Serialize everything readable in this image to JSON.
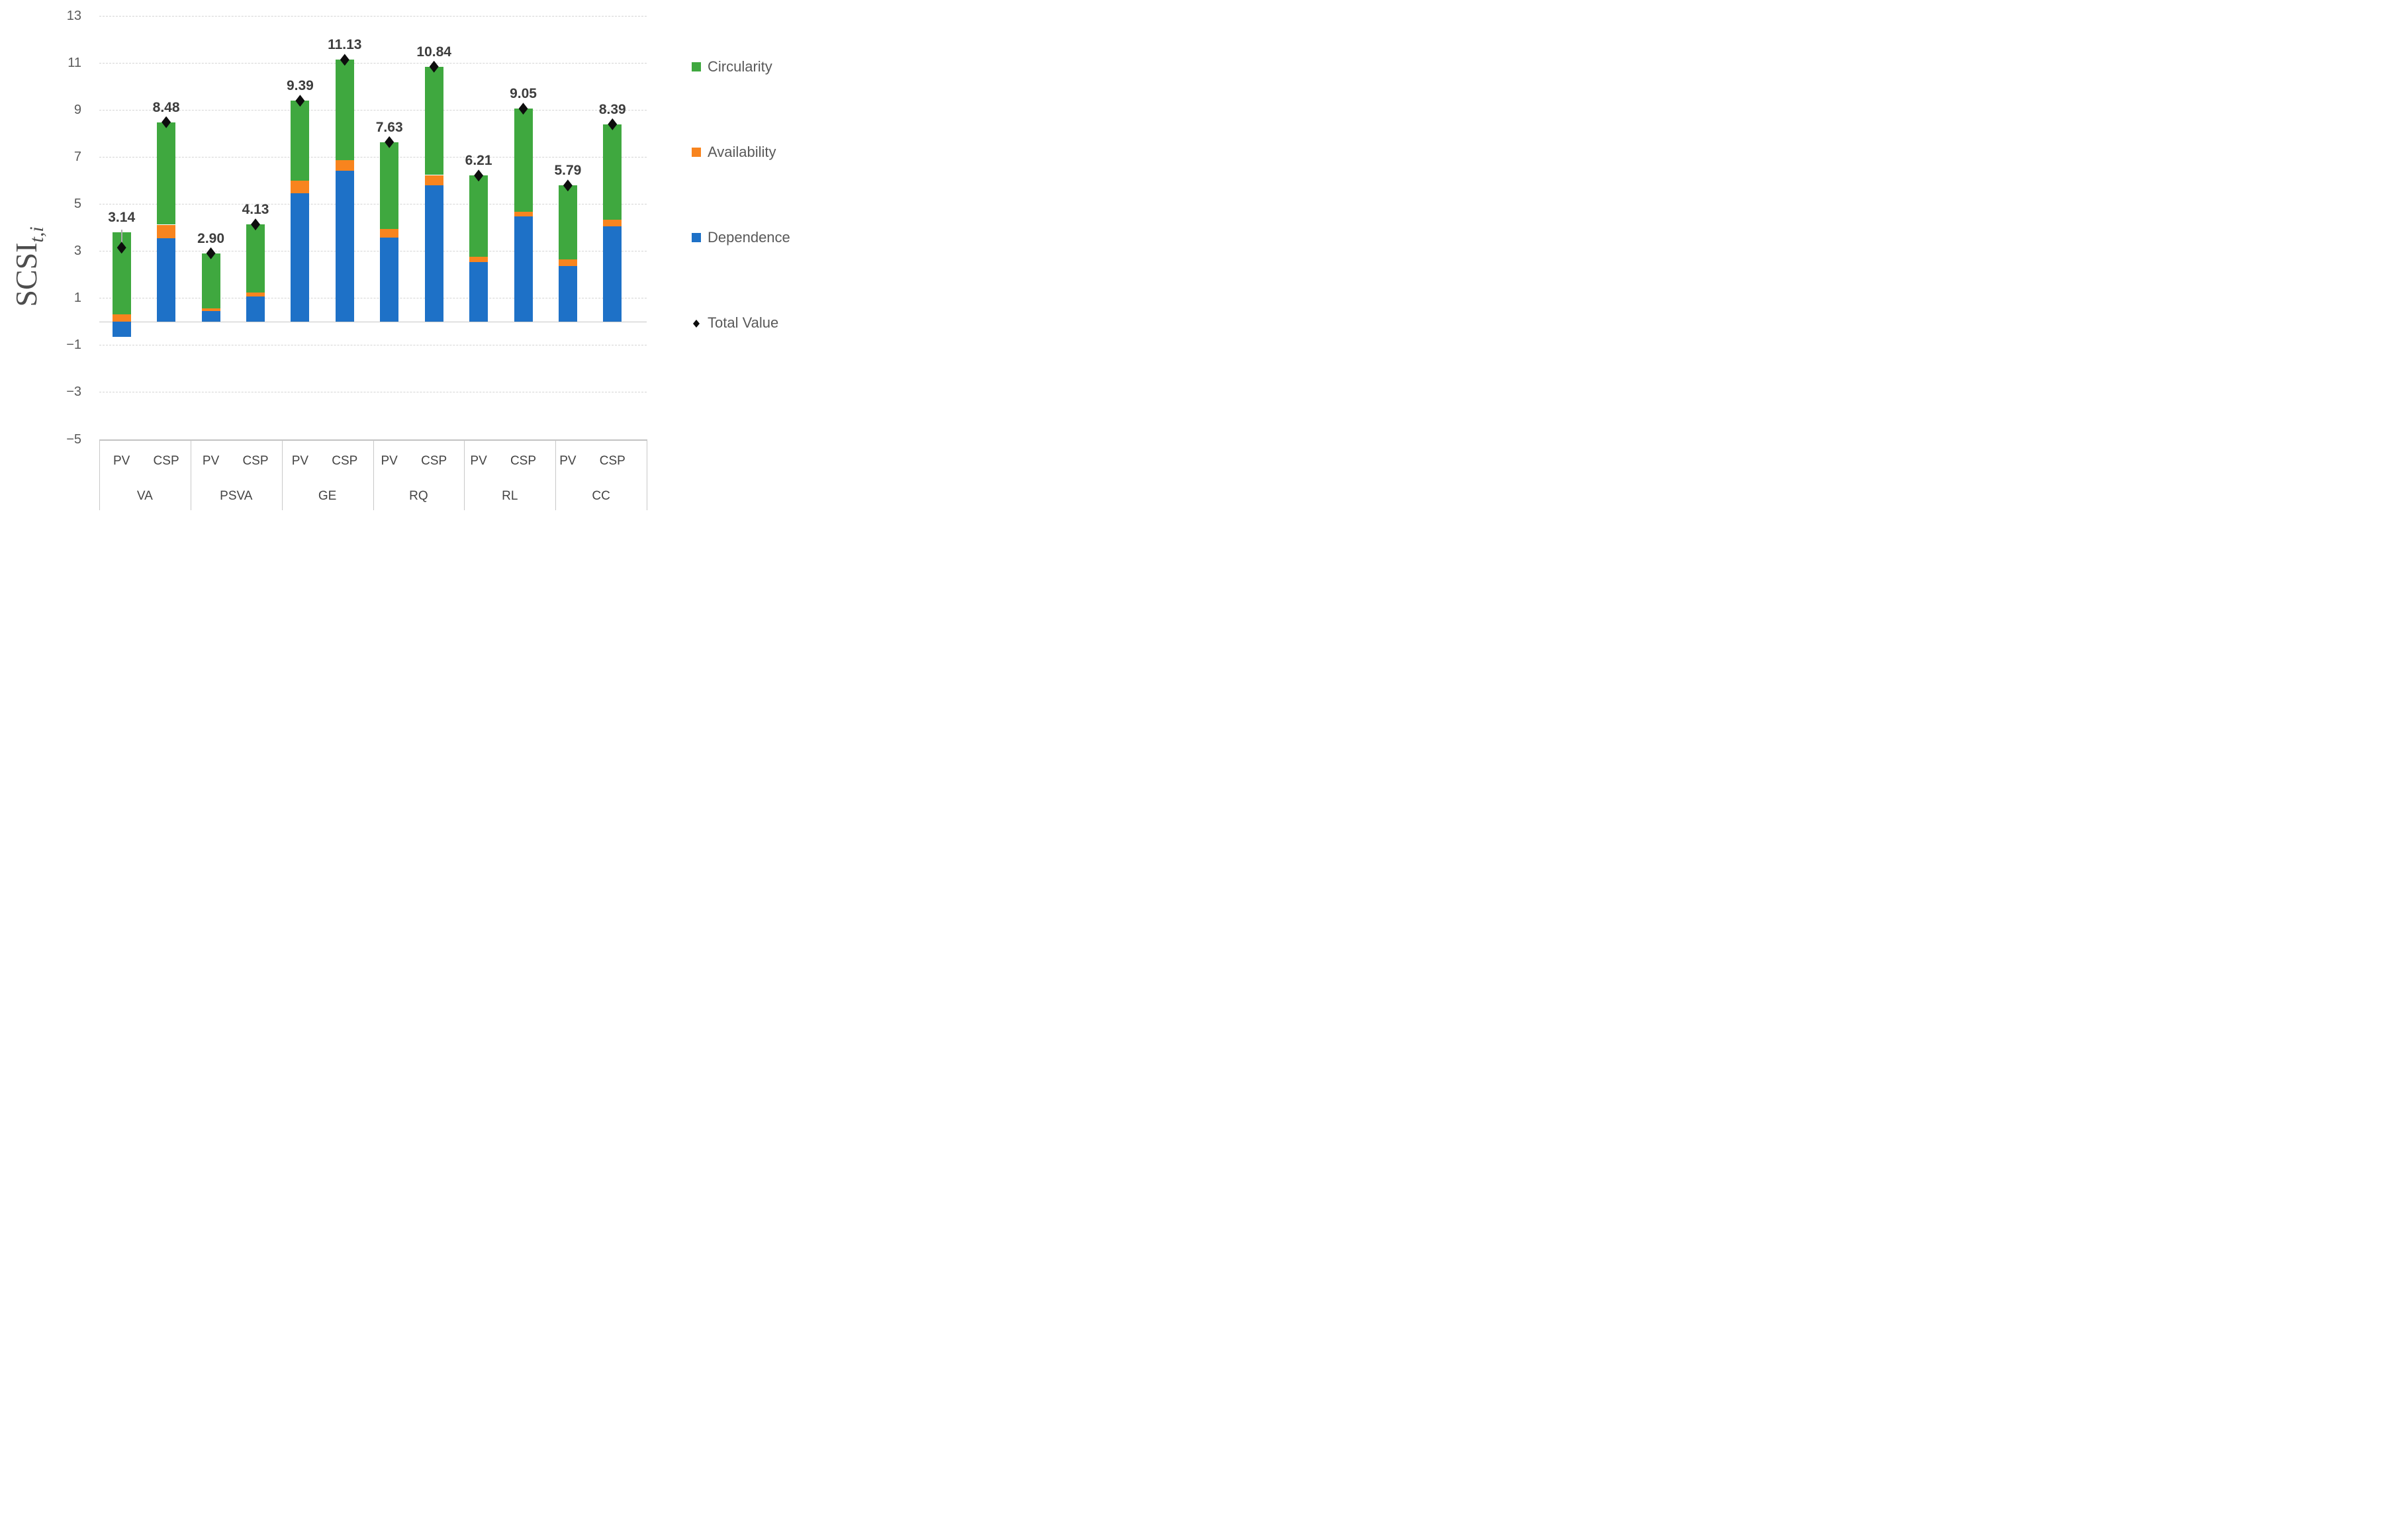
{
  "page": {
    "background": "#FFFFFF"
  },
  "y_axis": {
    "title_main": "SCSI",
    "title_subscript": "t,i",
    "ticks": [
      "13",
      "11",
      "9",
      "7",
      "5",
      "3",
      "1",
      "−1",
      "−3",
      "−5"
    ],
    "tick_values": [
      13,
      11,
      9,
      7,
      5,
      3,
      1,
      -1,
      -3,
      -5
    ]
  },
  "x_axis": {
    "bar_labels": [
      "PV",
      "CSP"
    ],
    "groups": [
      "VA",
      "PSVA",
      "GE",
      "RQ",
      "RL",
      "CC"
    ]
  },
  "legend": {
    "items": [
      {
        "label": "Circularity",
        "color": "#3FA83F",
        "marker": "square"
      },
      {
        "label": "Availability",
        "color": "#F8841E",
        "marker": "square"
      },
      {
        "label": "Dependence",
        "color": "#1E71C7",
        "marker": "square"
      },
      {
        "label": "Total Value",
        "color": "#0D0D0D",
        "marker": "diamond"
      }
    ]
  },
  "chart_data": {
    "type": "bar",
    "stacked": true,
    "ylabel": "SCSI t,i",
    "ylim": [
      -5,
      13
    ],
    "grid": true,
    "gridline_values": [
      13,
      11,
      9,
      7,
      5,
      3,
      1,
      -1,
      -3,
      -5
    ],
    "legend_position": "right",
    "categories": [
      "VA PV",
      "VA CSP",
      "PSVA PV",
      "PSVA CSP",
      "GE PV",
      "GE CSP",
      "RQ PV",
      "RQ CSP",
      "RL PV",
      "RL CSP",
      "CC PV",
      "CC CSP"
    ],
    "series": [
      {
        "name": "Dependence",
        "color": "#1E71C7",
        "values": [
          -0.65,
          3.55,
          0.45,
          1.07,
          5.45,
          6.42,
          3.56,
          5.8,
          2.53,
          4.47,
          2.36,
          4.04
        ]
      },
      {
        "name": "Availability",
        "color": "#F8841E",
        "values": [
          0.3,
          0.57,
          0.12,
          0.16,
          0.55,
          0.44,
          0.38,
          0.43,
          0.23,
          0.19,
          0.29,
          0.3
        ]
      },
      {
        "name": "Circularity",
        "color": "#3FA83F",
        "values": [
          3.49,
          4.36,
          2.33,
          2.9,
          3.39,
          4.27,
          3.69,
          4.61,
          3.45,
          4.39,
          3.14,
          4.05
        ]
      }
    ],
    "totals": {
      "name": "Total Value",
      "marker_color": "#0D0D0D",
      "values": [
        3.14,
        8.48,
        2.9,
        4.13,
        9.39,
        11.13,
        7.63,
        10.84,
        6.21,
        9.05,
        5.79,
        8.39
      ],
      "labels": [
        "3.14",
        "8.48",
        "2.90",
        "4.13",
        "9.39",
        "11.13",
        "7.63",
        "10.84",
        "6.21",
        "9.05",
        "5.79",
        "8.39"
      ]
    },
    "leader_line": {
      "bar_index": 0,
      "from": 3.9,
      "to": 2.98,
      "color": "#ABABAB"
    }
  }
}
